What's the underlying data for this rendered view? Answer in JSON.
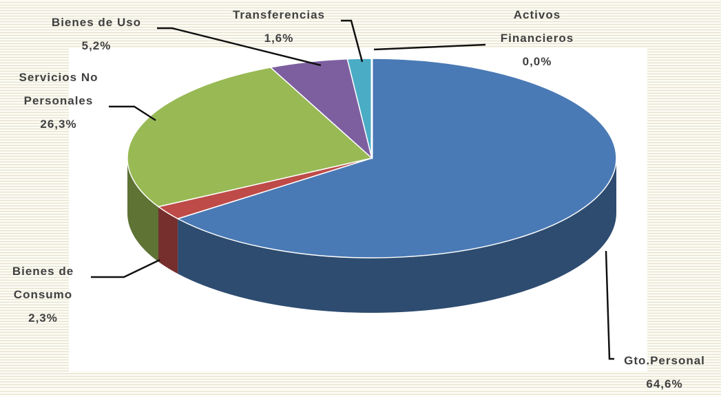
{
  "chart_data": {
    "type": "pie",
    "categories": [
      "Gto.Personal",
      "Bienes de Consumo",
      "Servicios No Personales",
      "Bienes de Uso",
      "Transferencias",
      "Activos Financieros"
    ],
    "values": [
      64.6,
      2.3,
      26.3,
      5.2,
      1.6,
      0.0
    ],
    "value_labels": [
      "64,6%",
      "2,3%",
      "26,3%",
      "5,2%",
      "1,6%",
      "0,0%"
    ],
    "colors": [
      "#4a7ab5",
      "#be4b48",
      "#98b954",
      "#7d5fa0",
      "#4bacc6",
      "#f79646"
    ]
  }
}
